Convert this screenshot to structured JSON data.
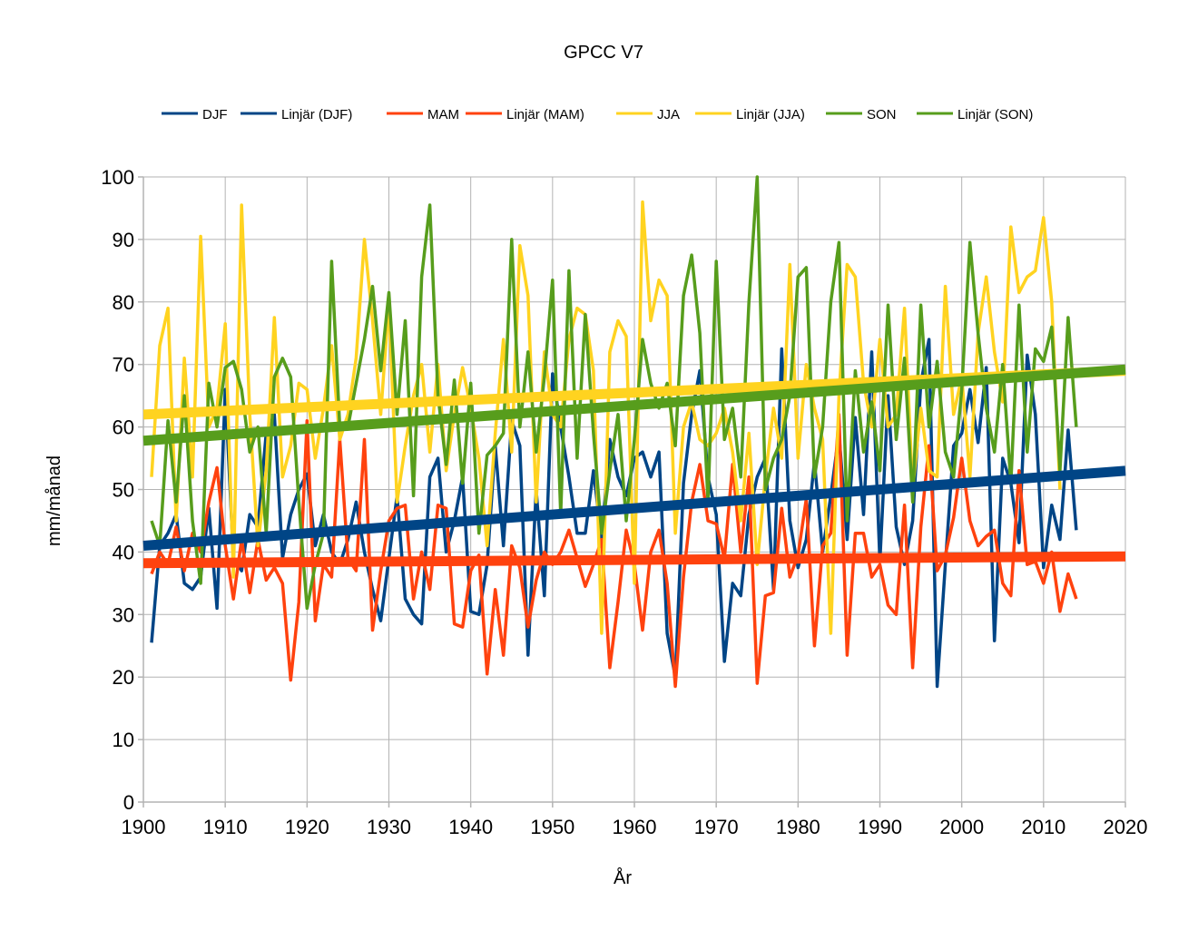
{
  "chart_data": {
    "type": "line",
    "title": "GPCC V7",
    "xlabel": "År",
    "ylabel": "mm/månad",
    "xlim": [
      1900,
      2020
    ],
    "ylim": [
      0,
      100
    ],
    "x_ticks": [
      1900,
      1910,
      1920,
      1930,
      1940,
      1950,
      1960,
      1970,
      1980,
      1990,
      2000,
      2010,
      2020
    ],
    "y_ticks": [
      0,
      10,
      20,
      30,
      40,
      50,
      60,
      70,
      80,
      90,
      100
    ],
    "grid": true,
    "legend_position": "top",
    "legend": [
      {
        "label": "DJF",
        "color": "#004586"
      },
      {
        "label": "Linjär (DJF)",
        "color": "#004586"
      },
      {
        "label": "MAM",
        "color": "#ff420e"
      },
      {
        "label": "Linjär (MAM)",
        "color": "#ff420e"
      },
      {
        "label": "JJA",
        "color": "#ffd320"
      },
      {
        "label": "Linjär (JJA)",
        "color": "#ffd320"
      },
      {
        "label": "SON",
        "color": "#579d1c"
      },
      {
        "label": "Linjär (SON)",
        "color": "#579d1c"
      }
    ],
    "x_start": 1901,
    "series": [
      {
        "name": "DJF",
        "color": "#004586",
        "values": [
          25.5,
          41,
          43,
          46,
          35,
          34,
          36,
          47,
          31,
          66,
          39,
          37,
          46,
          44,
          59,
          62,
          39,
          46,
          50,
          52.5,
          41,
          46,
          40,
          38,
          42,
          48,
          40,
          34,
          29,
          39,
          49,
          32.5,
          30,
          28.5,
          52,
          55,
          40,
          45,
          52,
          30.5,
          30,
          38,
          57,
          41,
          61,
          57,
          23.5,
          50,
          33,
          68.5,
          60,
          52,
          43,
          43,
          53,
          42,
          58,
          52,
          49,
          55,
          56,
          52,
          56,
          27,
          20,
          51,
          62,
          69,
          52,
          46,
          22.5,
          35,
          33,
          46,
          52,
          55,
          34,
          72.5,
          45,
          37.5,
          42,
          54.5,
          40,
          49,
          59,
          42,
          61.5,
          46,
          72,
          38.5,
          65,
          44,
          38,
          45,
          67,
          74,
          18.5,
          38,
          57,
          59,
          66,
          57.5,
          69.5,
          25.8,
          55,
          51,
          41.5,
          71.5,
          62,
          37.5,
          47.5,
          42,
          59.5,
          43.5
        ]
      },
      {
        "name": "MAM",
        "color": "#ff420e",
        "values": [
          36.5,
          40,
          38,
          44,
          37,
          43,
          40,
          48,
          53.5,
          41,
          32.5,
          42,
          33.5,
          42,
          35.5,
          37.5,
          35,
          19.5,
          32,
          61,
          29,
          38,
          36,
          58,
          39,
          37,
          58,
          27.5,
          37,
          45,
          47,
          47.5,
          32.5,
          40,
          34,
          47.5,
          47,
          28.5,
          28,
          37,
          39.5,
          20.5,
          34,
          23.5,
          41,
          37.5,
          28,
          35.5,
          40,
          38,
          40,
          43.5,
          39,
          34.5,
          38,
          42,
          21.5,
          32,
          43.5,
          38,
          27.5,
          40,
          43.5,
          35,
          18.5,
          36,
          48,
          54,
          45,
          44.5,
          39,
          54,
          40,
          52,
          19,
          33,
          33.5,
          47,
          36,
          39.5,
          48.5,
          25,
          41,
          43,
          62,
          23.5,
          43,
          43,
          36,
          38,
          31.5,
          30,
          47.5,
          21.5,
          44,
          57,
          37,
          39.5,
          45.5,
          55,
          45,
          41,
          42.5,
          43.5,
          35,
          33,
          53,
          38,
          38.5,
          35,
          40,
          30.5,
          36.5,
          32.5
        ]
      },
      {
        "name": "JJA",
        "color": "#ffd320",
        "values": [
          52,
          73,
          79,
          45,
          71,
          52,
          90.5,
          60,
          63,
          76.5,
          36,
          95.5,
          62,
          41,
          53,
          77.5,
          52,
          57,
          67,
          66,
          55,
          63,
          73,
          58,
          62,
          71,
          90,
          77,
          62,
          80,
          48,
          57,
          65,
          70,
          56,
          70,
          53,
          62,
          69.5,
          63,
          55,
          41,
          59,
          74,
          56,
          89,
          81,
          48,
          72,
          62,
          60,
          74,
          79,
          78,
          69,
          27,
          72,
          77,
          74.5,
          35,
          96,
          77,
          83.5,
          81,
          43,
          60,
          64,
          58,
          57,
          59,
          63,
          56,
          45,
          59,
          38,
          52,
          63,
          55,
          86,
          55,
          70,
          63,
          58,
          27,
          65,
          86,
          84,
          67,
          60,
          74,
          60,
          62,
          79,
          50,
          63,
          53,
          52,
          82.5,
          62,
          68,
          52,
          75,
          84,
          72,
          64,
          92,
          81.5,
          84,
          85,
          93.5,
          80,
          50
        ]
      },
      {
        "name": "SON",
        "color": "#579d1c",
        "values": [
          45,
          41,
          61,
          48,
          65,
          45,
          35,
          67,
          60,
          69.5,
          70.5,
          66,
          56,
          60,
          43,
          68,
          71,
          68,
          48,
          31,
          38,
          43,
          86.5,
          60,
          60,
          67,
          74,
          82.5,
          69,
          81.5,
          62,
          77,
          49,
          84,
          95.5,
          65,
          54,
          67.5,
          51,
          67,
          43,
          55.5,
          57,
          59,
          90,
          60,
          72,
          56,
          68,
          83.5,
          46,
          85,
          55,
          78,
          59,
          43,
          53,
          62,
          45,
          58,
          74,
          67,
          63,
          67,
          57,
          81,
          87.5,
          75,
          48,
          86.5,
          58,
          63,
          52,
          80,
          100,
          50,
          55,
          58,
          65,
          84,
          85.5,
          52,
          60,
          80,
          89.5,
          45,
          69,
          56,
          64,
          53,
          79.5,
          58,
          71,
          48,
          79.5,
          60,
          70.5,
          56,
          52,
          66,
          89.5,
          75,
          63,
          56,
          70,
          51,
          79.5,
          56,
          72.5,
          70.5,
          76,
          53,
          77.5,
          60
        ]
      },
      {
        "name": "Linjär (DJF)",
        "color": "#004586",
        "trend": true,
        "x": [
          1900,
          2020
        ],
        "values": [
          41,
          53
        ]
      },
      {
        "name": "Linjär (MAM)",
        "color": "#ff420e",
        "trend": true,
        "x": [
          1900,
          2020
        ],
        "values": [
          38.2,
          39.3
        ]
      },
      {
        "name": "Linjär (JJA)",
        "color": "#ffd320",
        "trend": true,
        "x": [
          1900,
          2020
        ],
        "values": [
          62,
          69
        ]
      },
      {
        "name": "Linjär (SON)",
        "color": "#579d1c",
        "trend": true,
        "x": [
          1900,
          2020
        ],
        "values": [
          57.8,
          69.2
        ]
      }
    ]
  }
}
